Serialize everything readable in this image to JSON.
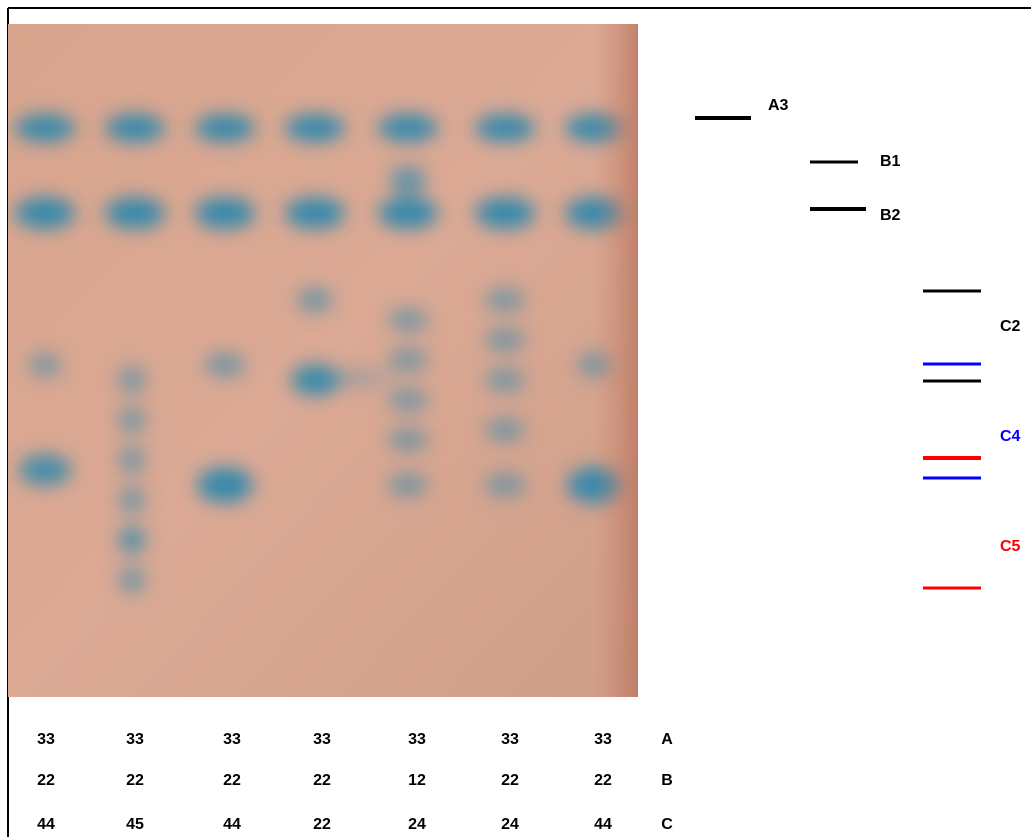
{
  "markers": [
    {
      "label": "A3"
    },
    {
      "label": "B1"
    },
    {
      "label": "B2"
    },
    {
      "label": "C2"
    },
    {
      "label": "C4"
    },
    {
      "label": "C5"
    }
  ],
  "table": {
    "rows": [
      [
        "33",
        "33",
        "33",
        "33",
        "33",
        "33",
        "33",
        "A"
      ],
      [
        "22",
        "22",
        "22",
        "22",
        "12",
        "22",
        "22",
        "B"
      ],
      [
        "44",
        "45",
        "44",
        "22",
        "24",
        "24",
        "44",
        "C"
      ]
    ]
  }
}
